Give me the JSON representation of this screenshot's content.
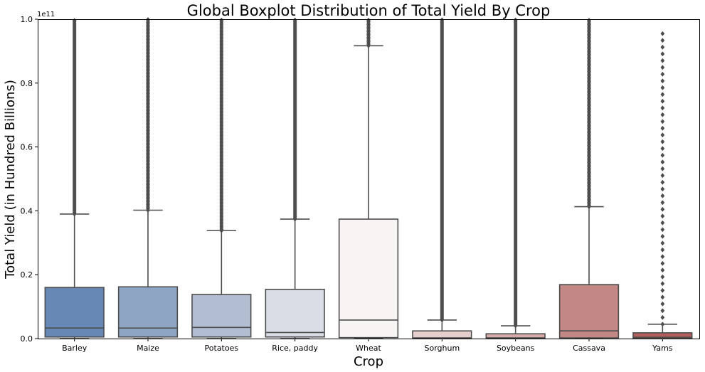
{
  "chart_data": {
    "type": "boxplot",
    "title": "Global Boxplot Distribution of Total Yield By Crop",
    "xlabel": "Crop",
    "ylabel": "Total Yield (in Hundred Billions)",
    "y_offset_label": "1e11",
    "ylim": [
      0,
      1.0
    ],
    "yticks": [
      0.0,
      0.2,
      0.4,
      0.6,
      0.8,
      1.0
    ],
    "ytick_labels": [
      "0.0",
      "0.2",
      "0.4",
      "0.6",
      "0.8",
      "1.0"
    ],
    "grid": false,
    "categories": [
      "Barley",
      "Maize",
      "Potatoes",
      "Rice, paddy",
      "Wheat",
      "Sorghum",
      "Soybeans",
      "Cassava",
      "Yams"
    ],
    "colors": [
      "#6788b5",
      "#8ea5c3",
      "#b1bdd1",
      "#d8dde6",
      "#f7f4f3",
      "#e5cfcd",
      "#d7aaa8",
      "#c38886",
      "#b25e5f"
    ],
    "boxes": [
      {
        "q1": 0.005,
        "median": 0.033,
        "q3": 0.16,
        "whisker_low": 0.0,
        "whisker_high": 0.39,
        "outlier_min": 0.39,
        "outlier_max": 1.0
      },
      {
        "q1": 0.005,
        "median": 0.033,
        "q3": 0.162,
        "whisker_low": 0.0,
        "whisker_high": 0.402,
        "outlier_min": 0.402,
        "outlier_max": 1.0
      },
      {
        "q1": 0.005,
        "median": 0.035,
        "q3": 0.138,
        "whisker_low": 0.0,
        "whisker_high": 0.338,
        "outlier_min": 0.338,
        "outlier_max": 1.0
      },
      {
        "q1": 0.005,
        "median": 0.019,
        "q3": 0.154,
        "whisker_low": 0.0,
        "whisker_high": 0.374,
        "outlier_min": 0.374,
        "outlier_max": 1.0
      },
      {
        "q1": 0.003,
        "median": 0.058,
        "q3": 0.374,
        "whisker_low": 0.0,
        "whisker_high": 0.917,
        "outlier_min": 0.917,
        "outlier_max": 1.0
      },
      {
        "q1": 0.0,
        "median": 0.002,
        "q3": 0.024,
        "whisker_low": 0.0,
        "whisker_high": 0.058,
        "outlier_min": 0.058,
        "outlier_max": 1.0
      },
      {
        "q1": 0.0,
        "median": 0.002,
        "q3": 0.015,
        "whisker_low": 0.0,
        "whisker_high": 0.04,
        "outlier_min": 0.04,
        "outlier_max": 1.0
      },
      {
        "q1": 0.002,
        "median": 0.024,
        "q3": 0.169,
        "whisker_low": 0.0,
        "whisker_high": 0.413,
        "outlier_min": 0.413,
        "outlier_max": 1.0
      },
      {
        "q1": 0.0,
        "median": 0.004,
        "q3": 0.018,
        "whisker_low": 0.0,
        "whisker_high": 0.045,
        "outlier_min": 0.045,
        "outlier_max": 0.975
      }
    ]
  }
}
